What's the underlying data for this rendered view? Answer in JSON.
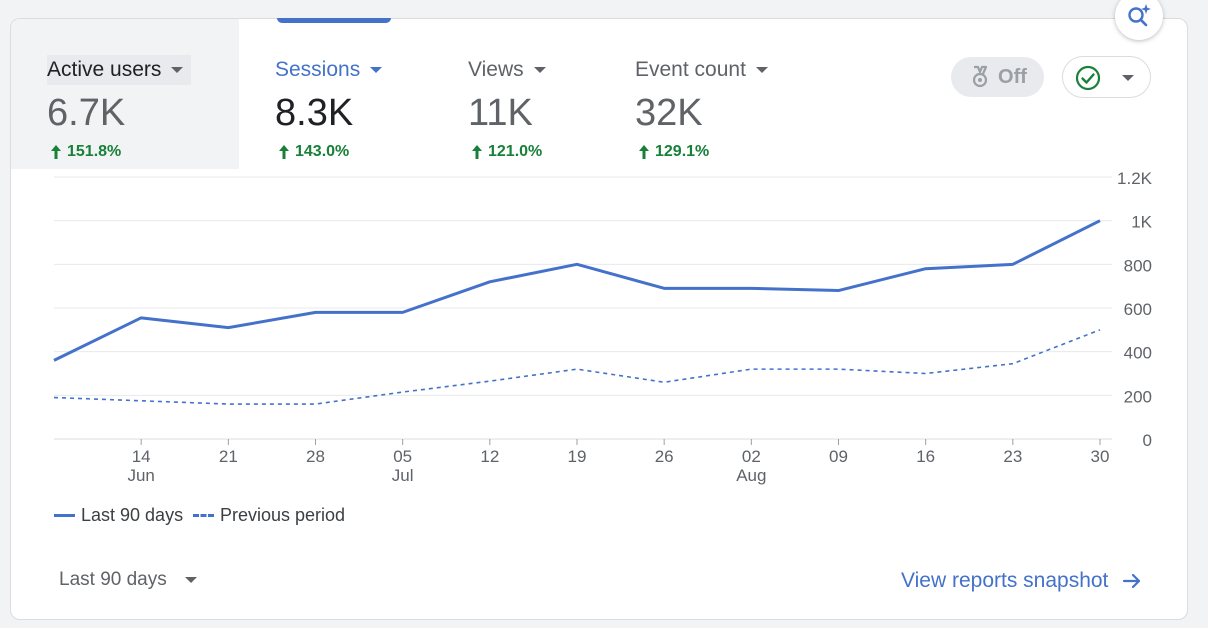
{
  "colors": {
    "accent": "#4472ca",
    "positive": "#188038",
    "previous_line": "#4472ca",
    "grid": "#e8eaed"
  },
  "insights_button": {
    "icon": "sparkle-search-icon"
  },
  "metric_tabs": [
    {
      "label": "Active users",
      "value": "6.7K",
      "change": "151.8%",
      "direction": "up",
      "state": "active"
    },
    {
      "label": "Sessions",
      "value": "8.3K",
      "change": "143.0%",
      "direction": "up",
      "state": "selected"
    },
    {
      "label": "Views",
      "value": "11K",
      "change": "121.0%",
      "direction": "up",
      "state": "normal"
    },
    {
      "label": "Event count",
      "value": "32K",
      "change": "129.1%",
      "direction": "up",
      "state": "normal"
    }
  ],
  "toolbar": {
    "anomaly_toggle_label": "Off",
    "anomaly_toggle_icon": "ribbon-award-icon",
    "compare_select_icon": "check-circle-icon"
  },
  "chart_data": {
    "type": "line",
    "x": [
      "06-08",
      "06-14",
      "06-21",
      "06-28",
      "07-05",
      "07-12",
      "07-19",
      "07-26",
      "08-02",
      "08-09",
      "08-16",
      "08-23",
      "08-30"
    ],
    "x_tick_labels": [
      "14",
      "21",
      "28",
      "05",
      "12",
      "19",
      "26",
      "02",
      "09",
      "16",
      "23",
      "30"
    ],
    "x_month_labels": [
      "Jun",
      "Jul",
      "Aug"
    ],
    "y_tick_labels": [
      "0",
      "200",
      "400",
      "600",
      "800",
      "1K",
      "1.2K"
    ],
    "ylim": [
      0,
      1200
    ],
    "grid": true,
    "legend_position": "bottom-left",
    "series": [
      {
        "name": "Last 90 days",
        "style": "solid",
        "values": [
          360,
          555,
          510,
          580,
          580,
          720,
          800,
          690,
          690,
          680,
          780,
          800,
          1000
        ]
      },
      {
        "name": "Previous period",
        "style": "dashed",
        "values": [
          190,
          175,
          160,
          160,
          215,
          265,
          320,
          260,
          320,
          320,
          300,
          345,
          500
        ]
      }
    ]
  },
  "footer": {
    "date_range_label": "Last 90 days",
    "view_link_label": "View reports snapshot",
    "view_link_icon": "arrow-right-icon"
  }
}
